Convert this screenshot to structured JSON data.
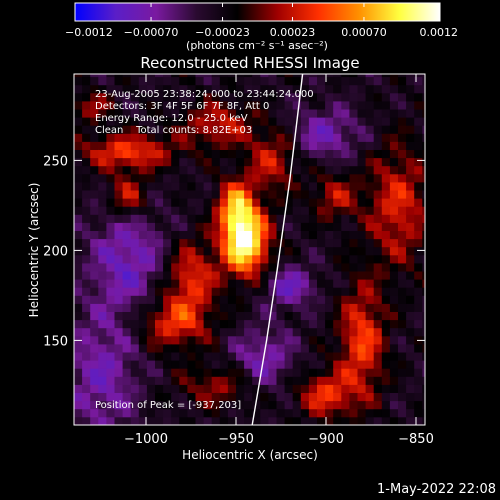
{
  "chart_data": {
    "type": "heatmap",
    "title": "Reconstructed RHESSI Image",
    "xlabel": "Heliocentric X (arcsec)",
    "ylabel": "Heliocentric Y (arcsec)",
    "xlim": [
      -1040,
      -845
    ],
    "ylim": [
      103,
      298
    ],
    "xticks": [
      -1000,
      -950,
      -900,
      -850
    ],
    "yticks": [
      150,
      200,
      250
    ],
    "xtick_labels": [
      "−1000",
      "−950",
      "−900",
      "−850"
    ],
    "ytick_labels": [
      "150",
      "200",
      "250"
    ],
    "colorbar": {
      "range": [
        -0.0012,
        0.0012
      ],
      "ticks": [
        -0.0012,
        -0.0007,
        -0.00023,
        0.00023,
        0.0007,
        0.0012
      ],
      "tick_labels": [
        "−0.0012",
        "−0.00070",
        "−0.00023",
        "0.00023",
        "0.00070",
        "0.0012"
      ],
      "unit_label": "(photons cm⁻² s⁻¹ asec⁻²)",
      "colormap": [
        "#0000ff",
        "#5a1ec8",
        "#7a1aa0",
        "#2a0a30",
        "#000000",
        "#a00000",
        "#ff3000",
        "#ff9000",
        "#ffff40",
        "#ffffff"
      ]
    },
    "annotations": [
      "23-Aug-2005 23:38:24.000 to 23:44:24.000",
      "Detectors: 3F 4F 5F 6F 7F 8F, Att 0",
      "Energy Range: 12.0 - 25.0 keV",
      "Clean    Total counts: 8.82E+03"
    ],
    "peak_label": "Position of Peak = [-937,203]",
    "peak_position": [
      -937,
      203
    ],
    "sources": [
      {
        "x": -945,
        "y": 205,
        "sx": 9,
        "sy": 13,
        "amp": 1.25
      },
      {
        "x": -950,
        "y": 225,
        "sx": 7,
        "sy": 10,
        "amp": 0.75
      },
      {
        "x": -975,
        "y": 185,
        "sx": 10,
        "sy": 14,
        "amp": 0.55
      },
      {
        "x": -985,
        "y": 160,
        "sx": 14,
        "sy": 10,
        "amp": 0.55
      },
      {
        "x": -1010,
        "y": 255,
        "sx": 18,
        "sy": 7,
        "amp": 0.6
      },
      {
        "x": -1010,
        "y": 230,
        "sx": 8,
        "sy": 9,
        "amp": 0.5
      },
      {
        "x": -960,
        "y": 270,
        "sx": 14,
        "sy": 9,
        "amp": 0.45
      },
      {
        "x": -930,
        "y": 250,
        "sx": 10,
        "sy": 12,
        "amp": 0.45
      },
      {
        "x": -880,
        "y": 150,
        "sx": 9,
        "sy": 22,
        "amp": 0.6
      },
      {
        "x": -900,
        "y": 120,
        "sx": 11,
        "sy": 9,
        "amp": 0.55
      },
      {
        "x": -860,
        "y": 225,
        "sx": 12,
        "sy": 24,
        "amp": 0.5
      },
      {
        "x": -895,
        "y": 230,
        "sx": 9,
        "sy": 9,
        "amp": 0.4
      },
      {
        "x": -1030,
        "y": 280,
        "sx": 8,
        "sy": 6,
        "amp": 0.35
      },
      {
        "x": -960,
        "y": 125,
        "sx": 15,
        "sy": 8,
        "amp": 0.35
      },
      {
        "x": -920,
        "y": 180,
        "sx": 10,
        "sy": 8,
        "amp": -0.45
      },
      {
        "x": -1010,
        "y": 195,
        "sx": 15,
        "sy": 22,
        "amp": -0.45
      },
      {
        "x": -1025,
        "y": 130,
        "sx": 14,
        "sy": 25,
        "amp": -0.4
      },
      {
        "x": -900,
        "y": 265,
        "sx": 14,
        "sy": 10,
        "amp": -0.4
      },
      {
        "x": -935,
        "y": 140,
        "sx": 12,
        "sy": 12,
        "amp": -0.4
      }
    ],
    "limb_curve": [
      {
        "x": -941,
        "y": 103
      },
      {
        "x": -933,
        "y": 150
      },
      {
        "x": -927,
        "y": 190
      },
      {
        "x": -920,
        "y": 240
      },
      {
        "x": -913,
        "y": 298
      }
    ]
  },
  "datestamp": "1-May-2022 22:08"
}
